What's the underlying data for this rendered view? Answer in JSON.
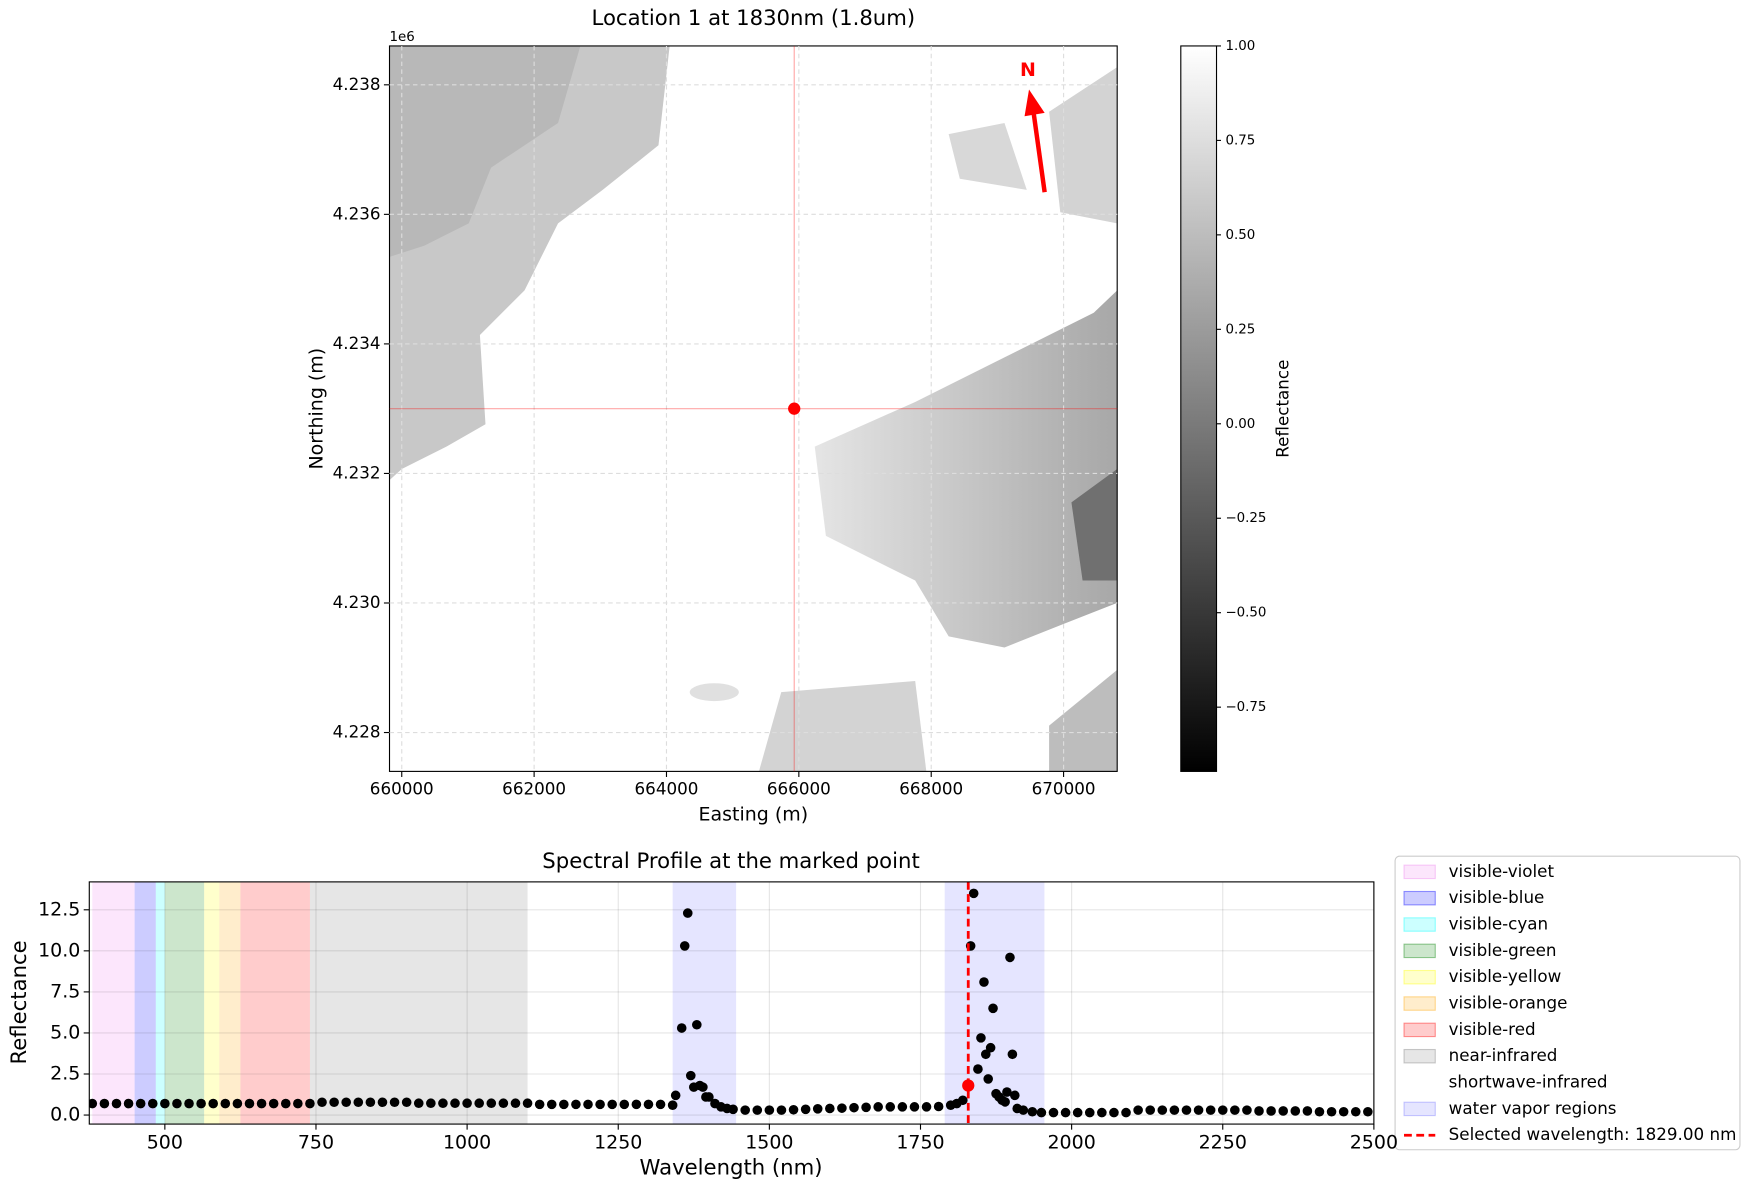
{
  "chart_data": [
    {
      "type": "image",
      "title": "Location 1 at 1830nm (1.8um)",
      "x_label": "Easting (m)",
      "y_label": "Northing (m)",
      "y_offset_label": "1e6",
      "xlim": [
        659815,
        670810
      ],
      "xticks": [
        660000,
        662000,
        664000,
        666000,
        668000,
        670000
      ],
      "ylim": [
        4.2274,
        4.2386
      ],
      "yticks": [
        4.228,
        4.23,
        4.232,
        4.234,
        4.236,
        4.238
      ],
      "yticks_labels": [
        "4.228",
        "4.230",
        "4.232",
        "4.234",
        "4.236",
        "4.238"
      ],
      "grid": true,
      "marker_x": 665930,
      "marker_y": 4.233,
      "marker_color": "#ff0000",
      "annotation": "N",
      "colorbar": {
        "label": "Reflectance",
        "lim": [
          -0.92,
          1.0
        ],
        "ticks": [
          {
            "value": -0.75,
            "label": "−0.75"
          },
          {
            "value": -0.5,
            "label": "−0.50"
          },
          {
            "value": -0.25,
            "label": "−0.25"
          },
          {
            "value": 0,
            "label": "0.00"
          },
          {
            "value": 0.25,
            "label": "0.25"
          },
          {
            "value": 0.5,
            "label": "0.50"
          },
          {
            "value": 0.75,
            "label": "0.75"
          },
          {
            "value": 1.0,
            "label": "1.00"
          }
        ]
      }
    },
    {
      "type": "scatter",
      "title": "Spectral Profile at the marked point",
      "x_label": "Wavelength (nm)",
      "y_label": "Reflectance",
      "xlim": [
        375,
        2500
      ],
      "xticks": [
        500,
        750,
        1000,
        1250,
        1500,
        1750,
        2000,
        2250,
        2500
      ],
      "ylim": [
        -0.55,
        14.2
      ],
      "yticks": [
        {
          "value": 0,
          "label": "0.0"
        },
        {
          "value": 2.5,
          "label": "2.5"
        },
        {
          "value": 5,
          "label": "5.0"
        },
        {
          "value": 7.5,
          "label": "7.5"
        },
        {
          "value": 10,
          "label": "10.0"
        },
        {
          "value": 12.5,
          "label": "12.5"
        }
      ],
      "grid": true,
      "color": "#000000",
      "x": [
        380,
        400,
        420,
        440,
        460,
        480,
        500,
        520,
        540,
        560,
        580,
        600,
        620,
        640,
        660,
        680,
        700,
        720,
        740,
        760,
        780,
        800,
        820,
        840,
        860,
        880,
        900,
        920,
        940,
        960,
        980,
        1000,
        1020,
        1040,
        1060,
        1080,
        1100,
        1120,
        1140,
        1160,
        1180,
        1200,
        1220,
        1240,
        1260,
        1280,
        1300,
        1320,
        1340,
        1345,
        1355,
        1360,
        1365,
        1370,
        1375,
        1380,
        1385,
        1390,
        1395,
        1400,
        1410,
        1420,
        1430,
        1440,
        1460,
        1480,
        1500,
        1520,
        1540,
        1560,
        1580,
        1600,
        1620,
        1640,
        1660,
        1680,
        1700,
        1720,
        1740,
        1760,
        1780,
        1800,
        1810,
        1820,
        1833,
        1838,
        1845,
        1850,
        1855,
        1858,
        1862,
        1866,
        1870,
        1875,
        1880,
        1885,
        1890,
        1893,
        1898,
        1902,
        1906,
        1910,
        1920,
        1935,
        1950,
        1970,
        1990,
        2010,
        2030,
        2050,
        2070,
        2090,
        2110,
        2130,
        2150,
        2170,
        2190,
        2210,
        2230,
        2250,
        2270,
        2290,
        2310,
        2330,
        2350,
        2370,
        2390,
        2410,
        2430,
        2450,
        2470,
        2490
      ],
      "values": [
        0.7,
        0.7,
        0.7,
        0.7,
        0.7,
        0.7,
        0.7,
        0.7,
        0.7,
        0.7,
        0.7,
        0.7,
        0.7,
        0.7,
        0.7,
        0.7,
        0.7,
        0.7,
        0.7,
        0.78,
        0.78,
        0.78,
        0.78,
        0.78,
        0.78,
        0.78,
        0.78,
        0.72,
        0.72,
        0.72,
        0.72,
        0.72,
        0.72,
        0.72,
        0.72,
        0.72,
        0.72,
        0.65,
        0.65,
        0.65,
        0.65,
        0.65,
        0.65,
        0.65,
        0.65,
        0.65,
        0.65,
        0.65,
        0.6,
        1.2,
        5.3,
        10.3,
        12.3,
        2.4,
        1.7,
        5.5,
        1.8,
        1.7,
        1.1,
        1.1,
        0.7,
        0.5,
        0.4,
        0.35,
        0.3,
        0.3,
        0.3,
        0.3,
        0.32,
        0.35,
        0.38,
        0.4,
        0.42,
        0.45,
        0.47,
        0.5,
        0.5,
        0.5,
        0.5,
        0.5,
        0.52,
        0.6,
        0.7,
        0.9,
        10.3,
        13.5,
        2.8,
        4.7,
        8.1,
        3.7,
        2.2,
        4.1,
        6.5,
        1.3,
        1.1,
        0.9,
        0.8,
        1.4,
        9.6,
        3.7,
        1.2,
        0.4,
        0.3,
        0.2,
        0.15,
        0.15,
        0.15,
        0.15,
        0.15,
        0.15,
        0.15,
        0.15,
        0.3,
        0.3,
        0.3,
        0.3,
        0.3,
        0.3,
        0.3,
        0.3,
        0.3,
        0.3,
        0.25,
        0.25,
        0.25,
        0.25,
        0.25,
        0.2,
        0.2,
        0.2,
        0.2,
        0.2
      ],
      "regions": [
        {
          "name": "visible-violet",
          "color": "#ee82ee",
          "alpha": 0.2,
          "spans": [
            [
              380,
              450
            ]
          ]
        },
        {
          "name": "visible-blue",
          "color": "#0000ff",
          "alpha": 0.2,
          "spans": [
            [
              450,
              485
            ]
          ]
        },
        {
          "name": "visible-cyan",
          "color": "#00ffff",
          "alpha": 0.2,
          "spans": [
            [
              485,
              500
            ]
          ]
        },
        {
          "name": "visible-green",
          "color": "#008000",
          "alpha": 0.2,
          "spans": [
            [
              500,
              565
            ]
          ]
        },
        {
          "name": "visible-yellow",
          "color": "#ffff00",
          "alpha": 0.2,
          "spans": [
            [
              565,
              590
            ]
          ]
        },
        {
          "name": "visible-orange",
          "color": "#ffa500",
          "alpha": 0.2,
          "spans": [
            [
              590,
              625
            ]
          ]
        },
        {
          "name": "visible-red",
          "color": "#ff0000",
          "alpha": 0.2,
          "spans": [
            [
              625,
              740
            ]
          ]
        },
        {
          "name": "near-infrared",
          "color": "#808080",
          "alpha": 0.2,
          "spans": [
            [
              740,
              1100
            ]
          ]
        },
        {
          "name": "shortwave-infrared",
          "color": "#ffffff",
          "alpha": 0.2,
          "spans": [
            [
              1100,
              2500
            ]
          ]
        },
        {
          "name": "water vapor regions",
          "color": "#0000ff",
          "alpha": 0.1,
          "spans": [
            [
              1340,
              1445
            ],
            [
              1790,
              1955
            ]
          ]
        }
      ],
      "selected_wavelength": 1829,
      "selected_value": 1.8,
      "selected_color": "#ff0000",
      "selected_label": "Selected wavelength: 1829.00 nm",
      "legend": "outside right"
    }
  ]
}
